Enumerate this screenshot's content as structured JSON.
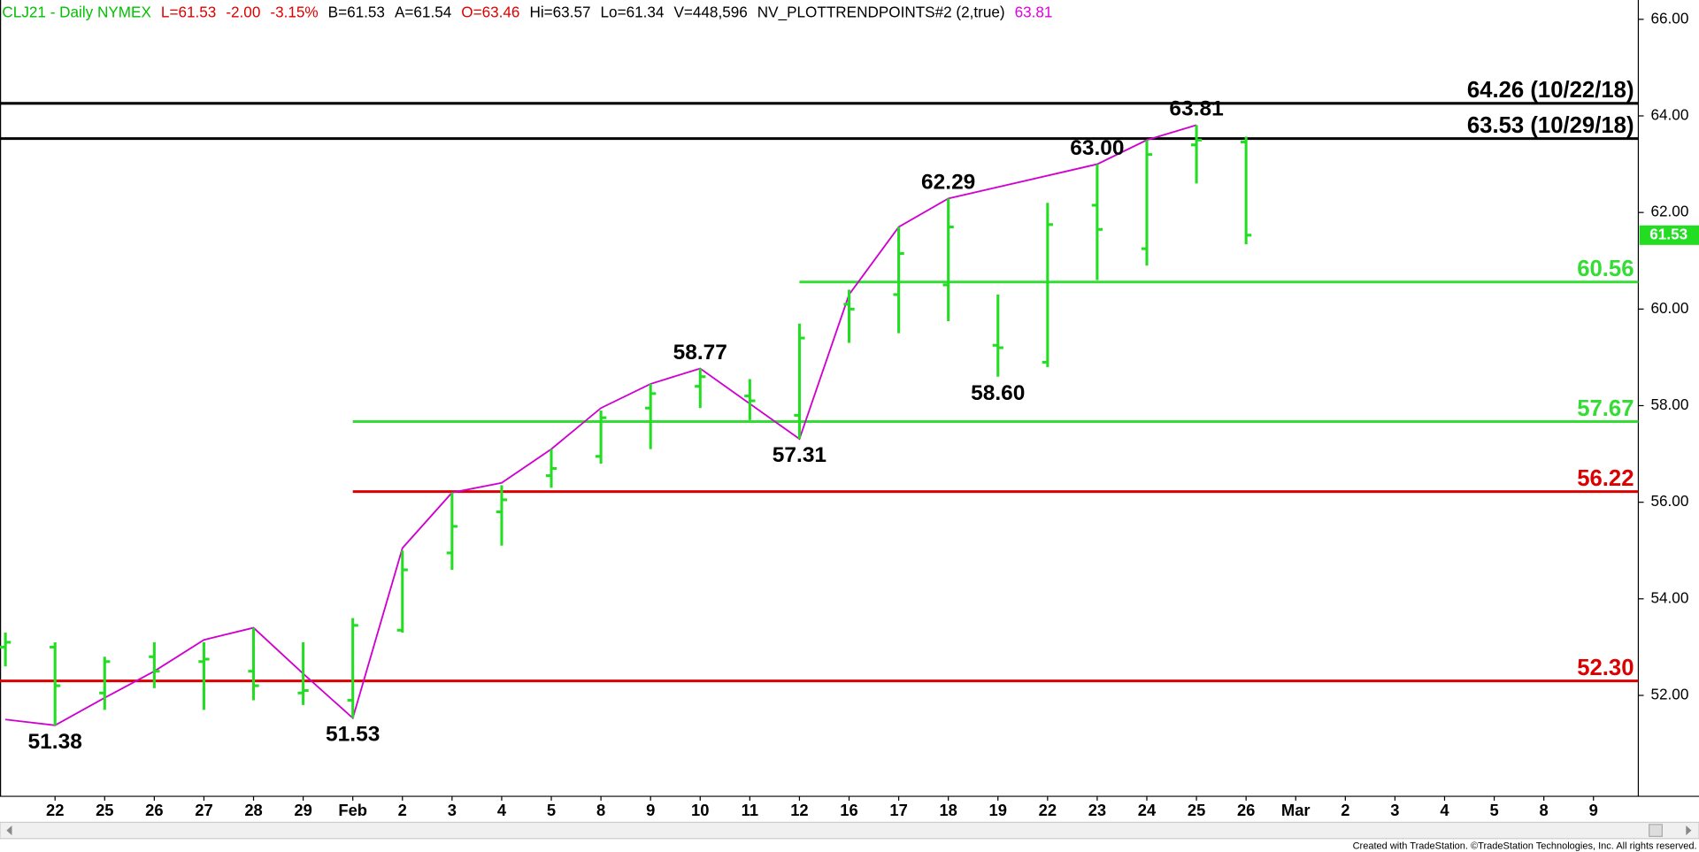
{
  "chart_data": {
    "type": "ohlc",
    "header": [
      {
        "text": "CLJ21 - Daily  NYMEX",
        "color": "#00c000"
      },
      {
        "text": "L=61.53",
        "color": "#e00000"
      },
      {
        "text": "-2.00",
        "color": "#e00000"
      },
      {
        "text": "-3.15%",
        "color": "#e00000"
      },
      {
        "text": "B=61.53",
        "color": "#000000"
      },
      {
        "text": "A=61.54",
        "color": "#000000"
      },
      {
        "text": "O=63.46",
        "color": "#e00000"
      },
      {
        "text": "Hi=63.57",
        "color": "#000000"
      },
      {
        "text": "Lo=61.34",
        "color": "#000000"
      },
      {
        "text": "V=448,596",
        "color": "#000000"
      },
      {
        "text": "NV_PLOTTRENDPOINTS#2 (2,true)",
        "color": "#000000"
      },
      {
        "text": "63.81",
        "color": "#e000e0"
      }
    ],
    "categories": [
      null,
      "22",
      "25",
      "26",
      "27",
      "28",
      "29",
      "Feb",
      "2",
      "3",
      "4",
      "5",
      "8",
      "9",
      "10",
      "11",
      "12",
      "16",
      "17",
      "18",
      "19",
      "22",
      "23",
      "24",
      "25",
      "26",
      "Mar",
      "2",
      "3",
      "4",
      "5",
      "8",
      "9"
    ],
    "open": [
      53.0,
      53.0,
      52.05,
      52.8,
      52.7,
      52.5,
      52.05,
      51.9,
      53.35,
      54.95,
      55.8,
      56.55,
      56.95,
      57.95,
      58.4,
      58.2,
      57.8,
      60.1,
      60.3,
      60.5,
      59.25,
      58.9,
      62.15,
      61.25,
      63.4,
      63.46,
      null,
      null,
      null,
      null,
      null,
      null,
      null
    ],
    "high": [
      53.3,
      53.1,
      52.8,
      53.1,
      53.1,
      53.4,
      53.1,
      53.6,
      55.0,
      56.2,
      56.35,
      57.1,
      57.9,
      58.45,
      58.77,
      58.55,
      59.7,
      60.4,
      61.7,
      62.29,
      60.3,
      62.2,
      63.0,
      63.5,
      63.81,
      63.57,
      null,
      null,
      null,
      null,
      null,
      null,
      null
    ],
    "low": [
      52.6,
      51.38,
      51.7,
      52.15,
      51.7,
      51.9,
      51.8,
      51.53,
      53.3,
      54.6,
      55.1,
      56.3,
      56.8,
      57.1,
      57.95,
      57.7,
      57.31,
      59.3,
      59.5,
      59.75,
      58.6,
      58.8,
      60.6,
      60.9,
      62.6,
      61.34,
      null,
      null,
      null,
      null,
      null,
      null,
      null
    ],
    "close": [
      53.1,
      52.2,
      52.7,
      52.5,
      52.75,
      52.2,
      52.1,
      53.45,
      54.6,
      55.5,
      56.05,
      56.7,
      57.75,
      58.25,
      58.6,
      58.1,
      59.4,
      60.0,
      61.15,
      61.7,
      59.2,
      61.75,
      61.65,
      63.2,
      63.5,
      61.53,
      null,
      null,
      null,
      null,
      null,
      null,
      null
    ],
    "bar_color": "#22dd22",
    "trend": {
      "color": "#d000d0",
      "x": [
        0,
        1,
        2,
        3,
        4,
        5,
        6,
        7,
        8,
        9,
        10,
        11,
        12,
        13,
        14,
        16,
        17,
        18,
        19,
        22,
        23,
        24
      ],
      "values": [
        51.5,
        51.38,
        51.95,
        52.5,
        53.15,
        53.4,
        52.45,
        51.53,
        55.05,
        56.2,
        56.4,
        57.1,
        57.95,
        58.45,
        58.77,
        57.31,
        60.3,
        61.7,
        62.29,
        63.0,
        63.5,
        63.81
      ]
    },
    "annotations": [
      {
        "text": "51.38",
        "x": 1,
        "position": "below"
      },
      {
        "text": "51.53",
        "x": 7,
        "position": "below"
      },
      {
        "text": "58.77",
        "x": 14,
        "position": "above"
      },
      {
        "text": "57.31",
        "x": 16,
        "position": "below"
      },
      {
        "text": "62.29",
        "x": 19,
        "position": "above"
      },
      {
        "text": "58.60",
        "x": 20,
        "position": "below"
      },
      {
        "text": "63.00",
        "x": 22,
        "position": "above"
      },
      {
        "text": "63.81",
        "x": 24,
        "position": "above"
      }
    ],
    "levels": [
      {
        "value": 64.26,
        "label": "64.26 (10/22/18)",
        "color": "#000000",
        "start": 0
      },
      {
        "value": 63.53,
        "label": "63.53 (10/29/18)",
        "color": "#000000",
        "start": 0
      },
      {
        "value": 60.56,
        "label": "60.56",
        "color": "#33dd33",
        "start": 16
      },
      {
        "value": 57.67,
        "label": "57.67",
        "color": "#33dd33",
        "start": 7
      },
      {
        "value": 56.22,
        "label": "56.22",
        "color": "#dd0000",
        "start": 7
      },
      {
        "value": 52.3,
        "label": "52.30",
        "color": "#dd0000",
        "start": 0
      }
    ],
    "ylim": [
      49.91,
      66.4
    ],
    "yticks": [
      {
        "value": 52,
        "label": "52.00"
      },
      {
        "value": 54,
        "label": "54.00"
      },
      {
        "value": 56,
        "label": "56.00"
      },
      {
        "value": 58,
        "label": "58.00"
      },
      {
        "value": 60,
        "label": "60.00"
      },
      {
        "value": 62,
        "label": "62.00"
      },
      {
        "value": 64,
        "label": "64.00"
      },
      {
        "value": 66,
        "label": "66.00"
      }
    ],
    "grid": false,
    "footer": "Created with TradeStation. ©TradeStation Technologies, Inc. All rights reserved."
  }
}
